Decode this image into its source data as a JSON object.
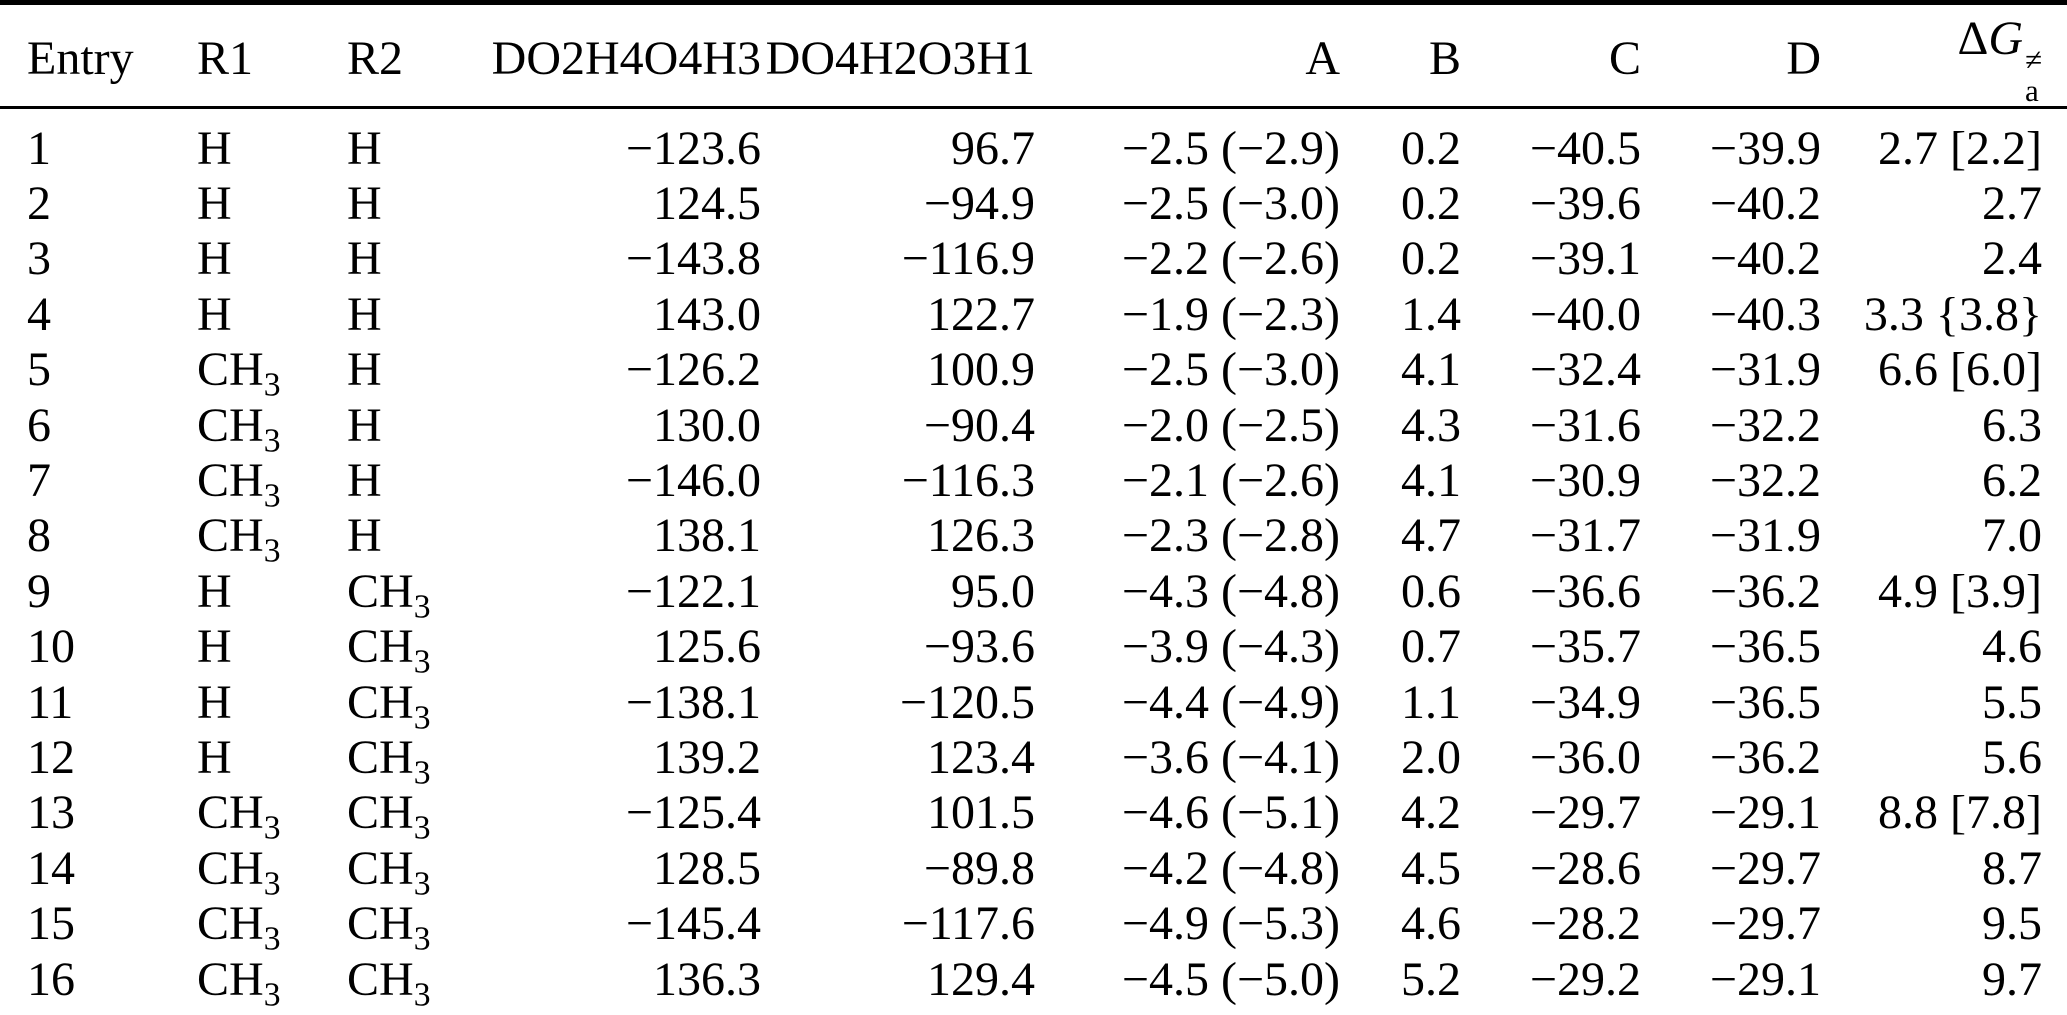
{
  "page": {
    "background_color": "#ffffff",
    "text_color": "#000000",
    "rule_color": "#000000"
  },
  "table": {
    "headers": [
      {
        "id": "entry",
        "label": "Entry",
        "align": "left"
      },
      {
        "id": "r1",
        "label": "R1",
        "align": "left"
      },
      {
        "id": "r2",
        "label": "R2",
        "align": "left"
      },
      {
        "id": "do2h4o4h3",
        "label": "DO2H4O4H3",
        "align": "right"
      },
      {
        "id": "do4h2o3h1",
        "label": "DO4H2O3H1",
        "align": "right"
      },
      {
        "id": "a",
        "label": "A",
        "align": "right"
      },
      {
        "id": "b",
        "label": "B",
        "align": "right"
      },
      {
        "id": "c",
        "label": "C",
        "align": "right"
      },
      {
        "id": "d",
        "label": "D",
        "align": "right"
      },
      {
        "id": "dga",
        "label": "ΔG",
        "delta": "Δ",
        "symbol": "G",
        "sup": "≠",
        "sub": "a",
        "align": "right"
      }
    ],
    "rows": [
      [
        "1",
        "H",
        "H",
        "−123.6",
        "96.7",
        "−2.5 (−2.9)",
        "0.2",
        "−40.5",
        "−39.9",
        "2.7 [2.2]"
      ],
      [
        "2",
        "H",
        "H",
        "124.5",
        "−94.9",
        "−2.5 (−3.0)",
        "0.2",
        "−39.6",
        "−40.2",
        "2.7"
      ],
      [
        "3",
        "H",
        "H",
        "−143.8",
        "−116.9",
        "−2.2 (−2.6)",
        "0.2",
        "−39.1",
        "−40.2",
        "2.4"
      ],
      [
        "4",
        "H",
        "H",
        "143.0",
        "122.7",
        "−1.9 (−2.3)",
        "1.4",
        "−40.0",
        "−40.3",
        "3.3 {3.8}"
      ],
      [
        "5",
        "CH3",
        "H",
        "−126.2",
        "100.9",
        "−2.5 (−3.0)",
        "4.1",
        "−32.4",
        "−31.9",
        "6.6 [6.0]"
      ],
      [
        "6",
        "CH3",
        "H",
        "130.0",
        "−90.4",
        "−2.0 (−2.5)",
        "4.3",
        "−31.6",
        "−32.2",
        "6.3"
      ],
      [
        "7",
        "CH3",
        "H",
        "−146.0",
        "−116.3",
        "−2.1 (−2.6)",
        "4.1",
        "−30.9",
        "−32.2",
        "6.2"
      ],
      [
        "8",
        "CH3",
        "H",
        "138.1",
        "126.3",
        "−2.3 (−2.8)",
        "4.7",
        "−31.7",
        "−31.9",
        "7.0"
      ],
      [
        "9",
        "H",
        "CH3",
        "−122.1",
        "95.0",
        "−4.3 (−4.8)",
        "0.6",
        "−36.6",
        "−36.2",
        "4.9 [3.9]"
      ],
      [
        "10",
        "H",
        "CH3",
        "125.6",
        "−93.6",
        "−3.9 (−4.3)",
        "0.7",
        "−35.7",
        "−36.5",
        "4.6"
      ],
      [
        "11",
        "H",
        "CH3",
        "−138.1",
        "−120.5",
        "−4.4 (−4.9)",
        "1.1",
        "−34.9",
        "−36.5",
        "5.5"
      ],
      [
        "12",
        "H",
        "CH3",
        "139.2",
        "123.4",
        "−3.6 (−4.1)",
        "2.0",
        "−36.0",
        "−36.2",
        "5.6"
      ],
      [
        "13",
        "CH3",
        "CH3",
        "−125.4",
        "101.5",
        "−4.6 (−5.1)",
        "4.2",
        "−29.7",
        "−29.1",
        "8.8 [7.8]"
      ],
      [
        "14",
        "CH3",
        "CH3",
        "128.5",
        "−89.8",
        "−4.2 (−4.8)",
        "4.5",
        "−28.6",
        "−29.7",
        "8.7"
      ],
      [
        "15",
        "CH3",
        "CH3",
        "−145.4",
        "−117.6",
        "−4.9 (−5.3)",
        "4.6",
        "−28.2",
        "−29.7",
        "9.5"
      ],
      [
        "16",
        "CH3",
        "CH3",
        "136.3",
        "129.4",
        "−4.5 (−5.0)",
        "5.2",
        "−29.2",
        "−29.1",
        "9.7"
      ]
    ]
  }
}
